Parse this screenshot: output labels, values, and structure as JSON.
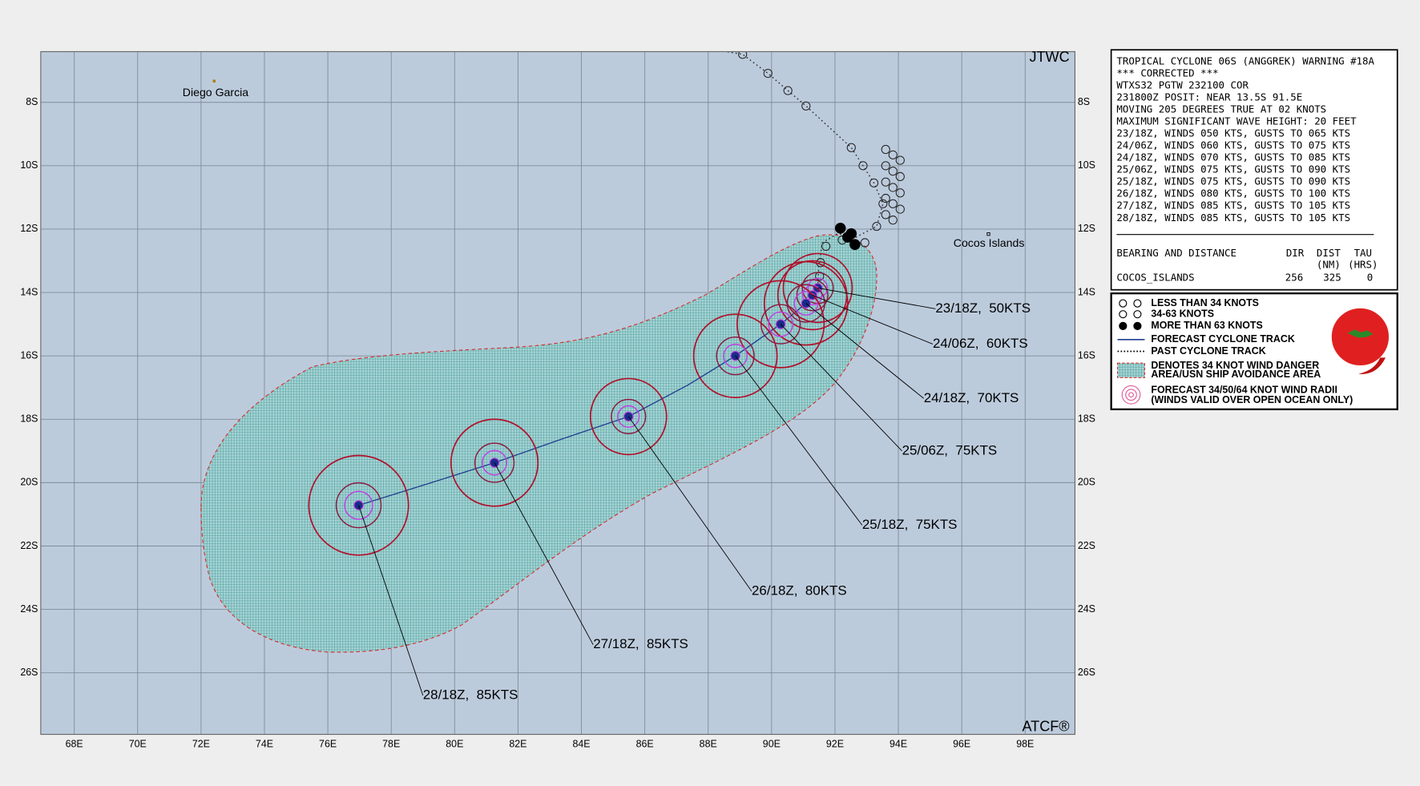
{
  "map": {
    "attribution_top": "JTWC",
    "attribution_bottom": "ATCF®",
    "lat_labels": [
      "8S",
      "10S",
      "12S",
      "14S",
      "16S",
      "18S",
      "20S",
      "22S",
      "24S",
      "26S"
    ],
    "lon_labels": [
      "68E",
      "70E",
      "72E",
      "74E",
      "76E",
      "78E",
      "80E",
      "82E",
      "84E",
      "86E",
      "88E",
      "90E",
      "92E",
      "94E",
      "96E",
      "98E"
    ],
    "places": [
      "Diego Garcia",
      "Cocos Islands"
    ],
    "forecast_labels": [
      "23/18Z,  50KTS",
      "24/06Z,  60KTS",
      "24/18Z,  70KTS",
      "25/06Z,  75KTS",
      "25/18Z,  75KTS",
      "26/18Z,  80KTS",
      "27/18Z,  85KTS",
      "28/18Z,  85KTS"
    ]
  },
  "warning": {
    "lines": [
      "TROPICAL CYCLONE 06S (ANGGREK) WARNING #18A",
      "*** CORRECTED ***",
      "WTXS32 PGTW 232100 COR",
      "231800Z POSIT: NEAR 13.5S 91.5E",
      "MOVING 205 DEGREES TRUE AT 02 KNOTS",
      "MAXIMUM SIGNIFICANT WAVE HEIGHT: 20 FEET",
      "23/18Z, WINDS 050 KTS, GUSTS TO 065 KTS",
      "24/06Z, WINDS 060 KTS, GUSTS TO 075 KTS",
      "24/18Z, WINDS 070 KTS, GUSTS TO 085 KTS",
      "25/06Z, WINDS 075 KTS, GUSTS TO 090 KTS",
      "25/18Z, WINDS 075 KTS, GUSTS TO 090 KTS",
      "26/18Z, WINDS 080 KTS, GUSTS TO 100 KTS",
      "27/18Z, WINDS 085 KTS, GUSTS TO 105 KTS",
      "28/18Z, WINDS 085 KTS, GUSTS TO 105 KTS"
    ],
    "table": {
      "title": "BEARING AND DISTANCE",
      "headers": [
        "DIR",
        "DIST",
        "TAU"
      ],
      "units": [
        "(NM)",
        "(HRS)"
      ],
      "rows": [
        [
          "COCOS_ISLANDS",
          256,
          325,
          0
        ]
      ]
    }
  },
  "legend": {
    "items": [
      "LESS THAN 34 KNOTS",
      "34-63 KNOTS",
      "MORE THAN 63 KNOTS",
      "FORECAST CYCLONE TRACK",
      "PAST CYCLONE TRACK",
      "DENOTES 34 KNOT WIND DANGER",
      "AREA/USN SHIP AVOIDANCE AREA",
      "FORECAST 34/50/64 KNOT WIND RADII",
      "(WINDS VALID OVER OPEN OCEAN ONLY)"
    ]
  }
}
